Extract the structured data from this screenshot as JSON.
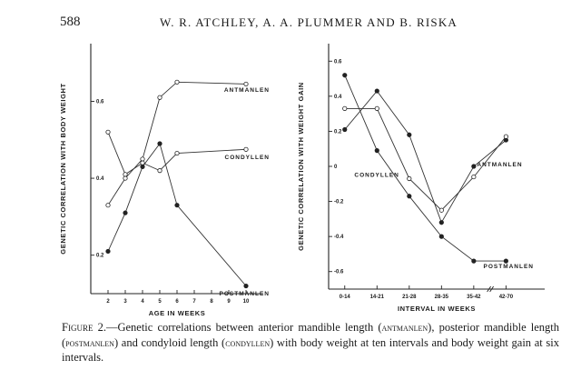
{
  "header": {
    "page_number": "588",
    "running_head": "W. R. ATCHLEY, A. A. PLUMMER AND B. RISKA"
  },
  "caption": {
    "label": "Figure 2.",
    "intro": "—Genetic correlations between anterior mandible length (",
    "t1": "antmanlen",
    "m1": "), posterior mandible length (",
    "t2": "postmanlen",
    "m2": ") and condyloid length (",
    "t3": "condyllen",
    "outro": ") with body weight at ten intervals and body weight gain at six intervals."
  },
  "chart_data": [
    {
      "type": "line",
      "ylabel": "GENETIC CORRELATION WITH BODY WEIGHT",
      "xlabel": "AGE IN WEEKS",
      "ylim": [
        0.1,
        0.75
      ],
      "xlim": [
        1,
        11
      ],
      "yticks": [
        0.2,
        0.4,
        0.6
      ],
      "ytick_labels": [
        "0.2",
        "0.4",
        "0.6"
      ],
      "xticks": [
        2,
        3,
        4,
        5,
        6,
        7,
        8,
        9,
        10
      ],
      "xtick_labels": [
        "2",
        "3",
        "4",
        "5",
        "6",
        "7",
        "8",
        "9",
        "10"
      ],
      "series": [
        {
          "name": "ANTMANLEN",
          "marker": "open",
          "points": [
            [
              2,
              0.33
            ],
            [
              3,
              0.4
            ],
            [
              4,
              0.45
            ],
            [
              5,
              0.61
            ],
            [
              6,
              0.65
            ],
            [
              10,
              0.645
            ]
          ],
          "label_at": [
            10,
            0.625
          ]
        },
        {
          "name": "CONDYLLEN",
          "marker": "open",
          "points": [
            [
              2,
              0.52
            ],
            [
              3,
              0.41
            ],
            [
              4,
              0.44
            ],
            [
              5,
              0.42
            ],
            [
              6,
              0.465
            ],
            [
              10,
              0.475
            ]
          ],
          "label_at": [
            10,
            0.45
          ]
        },
        {
          "name": "POSTMANLEN",
          "marker": "filled",
          "points": [
            [
              2,
              0.21
            ],
            [
              3,
              0.31
            ],
            [
              4,
              0.43
            ],
            [
              5,
              0.49
            ],
            [
              6,
              0.33
            ],
            [
              10,
              0.12
            ]
          ],
          "label_at": [
            10,
            0.095
          ]
        }
      ]
    },
    {
      "type": "line",
      "ylabel": "GENETIC CORRELATION WITH WEIGHT GAIN",
      "xlabel": "INTERVAL IN WEEKS",
      "ylim": [
        -0.7,
        0.7
      ],
      "xlim": [
        -0.5,
        6.2
      ],
      "yticks": [
        0.6,
        0.4,
        0.2,
        0,
        -0.2,
        -0.4,
        -0.6
      ],
      "ytick_labels": [
        "0.6",
        "0.4",
        "0.2",
        "0",
        "-0.2",
        "-0.4",
        "-0.6"
      ],
      "xticks": [
        0,
        1,
        2,
        3,
        4,
        5
      ],
      "xtick_labels": [
        "0-14",
        "14-21",
        "21-28",
        "28-35",
        "35-42",
        "42-70"
      ],
      "series": [
        {
          "name": "ANTMANLEN",
          "marker": "filled",
          "points": [
            [
              0,
              0.21
            ],
            [
              1,
              0.43
            ],
            [
              2,
              0.18
            ],
            [
              3,
              -0.32
            ],
            [
              4,
              0.0
            ],
            [
              5,
              0.15
            ]
          ],
          "label_at": [
            4.1,
            0.0
          ]
        },
        {
          "name": "CONDYLLEN",
          "marker": "open",
          "points": [
            [
              0,
              0.33
            ],
            [
              1,
              0.33
            ],
            [
              2,
              -0.07
            ],
            [
              3,
              -0.25
            ],
            [
              4,
              -0.06
            ],
            [
              5,
              0.17
            ]
          ],
          "label_at": [
            0.3,
            -0.06
          ]
        },
        {
          "name": "POSTMANLEN",
          "marker": "filled",
          "points": [
            [
              0,
              0.52
            ],
            [
              1,
              0.09
            ],
            [
              2,
              -0.17
            ],
            [
              3,
              -0.4
            ],
            [
              4,
              -0.54
            ],
            [
              5,
              -0.54
            ]
          ],
          "label_at": [
            4.3,
            -0.58
          ]
        }
      ]
    }
  ]
}
